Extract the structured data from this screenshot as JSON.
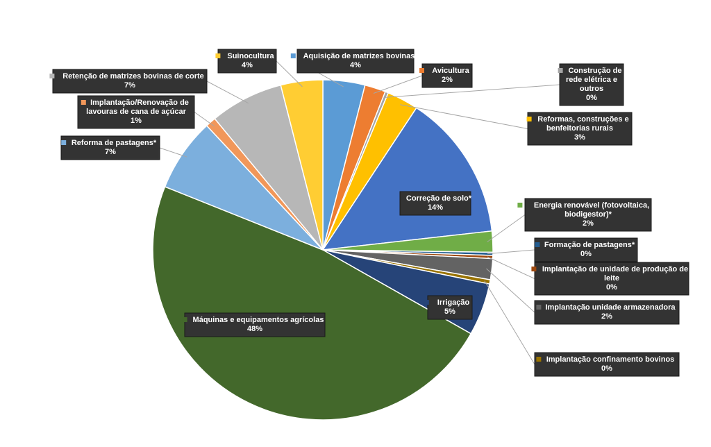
{
  "chart_data": {
    "type": "pie",
    "title": "",
    "slices": [
      {
        "label": "Aquisição de matrizes bovinas",
        "value": 4,
        "pct": "4%",
        "color": "#5B9BD5"
      },
      {
        "label": "Avicultura",
        "value": 2,
        "pct": "2%",
        "color": "#ED7D31"
      },
      {
        "label": "Construção de rede elétrica e outros",
        "value": 0.3,
        "pct": "0%",
        "color": "#A5A5A5"
      },
      {
        "label": "Reformas, construções e benfeitorias rurais",
        "value": 3,
        "pct": "3%",
        "color": "#FFC000"
      },
      {
        "label": "Correção de solo*",
        "value": 14,
        "pct": "14%",
        "color": "#4472C4"
      },
      {
        "label": "Energia renovável (fotovoltaica, biodigestor)*",
        "value": 2,
        "pct": "2%",
        "color": "#70AD47"
      },
      {
        "label": "Formação de pastagens*",
        "value": 0.3,
        "pct": "0%",
        "color": "#255E91"
      },
      {
        "label": "Implantação de unidade de produção de leite",
        "value": 0.3,
        "pct": "0%",
        "color": "#9E480E"
      },
      {
        "label": "Implantação unidade armazenadora",
        "value": 2,
        "pct": "2%",
        "color": "#636363"
      },
      {
        "label": "Implantação confinamento bovinos",
        "value": 0.4,
        "pct": "0%",
        "color": "#997300"
      },
      {
        "label": "Irrigação",
        "value": 5,
        "pct": "5%",
        "color": "#264478"
      },
      {
        "label": "Máquinas e equipamentos agrícolas",
        "value": 48,
        "pct": "48%",
        "color": "#43682B"
      },
      {
        "label": "Reforma de pastagens*",
        "value": 7,
        "pct": "7%",
        "color": "#7CAFDD"
      },
      {
        "label": "Implantação/Renovação de lavouras de cana de açúcar",
        "value": 1,
        "pct": "1%",
        "color": "#F1975A"
      },
      {
        "label": "Retenção de matrizes bovinas de corte",
        "value": 7,
        "pct": "7%",
        "color": "#B7B7B7"
      },
      {
        "label": "Suinocultura",
        "value": 4,
        "pct": "4%",
        "color": "#FFCD33"
      }
    ]
  }
}
